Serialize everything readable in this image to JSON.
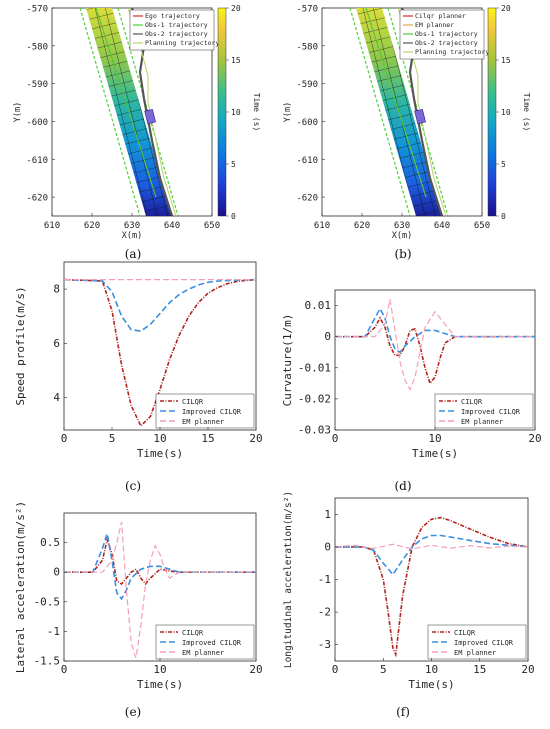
{
  "colors": {
    "ego": "#cc2b2b",
    "ilqr": "#b0231b",
    "improved": "#3a8fe0",
    "em": "#f4a0b4",
    "obs1": "#4ccf3a",
    "obs2": "#555555",
    "planning": "#b5d46a",
    "obstacle": "#7b68d8",
    "axis": "#262626",
    "grid": "#ffffff"
  },
  "colormap": {
    "name": "parula",
    "label": "Time (s)",
    "ticks": [
      0,
      5,
      10,
      15,
      20
    ],
    "range": [
      0,
      20
    ]
  },
  "panels": [
    {
      "id": "a",
      "label": "(a)",
      "ylabel": "Y(m)",
      "xlabel": "X(m)",
      "xticks": [
        610,
        620,
        630,
        640,
        650
      ],
      "yticks": [
        -570,
        -580,
        -590,
        -600,
        -610,
        -620
      ],
      "legend": [
        "Ego trajectory",
        "Obs-1 trajectory",
        "Obs-2 trajectory",
        "Planning trajectory"
      ]
    },
    {
      "id": "b",
      "label": "(b)",
      "ylabel": "Y(m)",
      "xlabel": "X(m)",
      "xticks": [
        610,
        620,
        630,
        640,
        650
      ],
      "yticks": [
        -570,
        -580,
        -590,
        -600,
        -610,
        -620
      ],
      "legend": [
        "Cilqr planner",
        "EM planner",
        "Obs-1 trajectory",
        "Obs-2 trajectory",
        "Planning trajectory"
      ]
    },
    {
      "id": "c",
      "label": "(c)",
      "ylabel": "Speed profile(m/s)",
      "xlabel": "Time(s)",
      "xticks": [
        0,
        5,
        10,
        15,
        20
      ],
      "yticks": [
        4,
        6,
        8
      ],
      "legend": [
        "CILQR",
        "Improved CILQR",
        "EM planner"
      ]
    },
    {
      "id": "d",
      "label": "(d)",
      "ylabel": "Curvature(1/m)",
      "xlabel": "Time(s)",
      "xticks": [
        0,
        10,
        20
      ],
      "yticks": [
        0.01,
        0,
        -0.01,
        -0.02,
        -0.03
      ],
      "legend": [
        "CILQR",
        "Improved CILQR",
        "EM planner"
      ]
    },
    {
      "id": "e",
      "label": "(e)",
      "ylabel": "Lateral acceleration(m/s²)",
      "xlabel": "Time(s)",
      "xticks": [
        0,
        10,
        20
      ],
      "yticks": [
        0.5,
        0,
        -0.5,
        -1,
        -1.5
      ],
      "legend": [
        "CILQR",
        "Improved CILQR",
        "EM planner"
      ]
    },
    {
      "id": "f",
      "label": "(f)",
      "ylabel": "Longitudinal acceleration(m/s²)",
      "xlabel": "Time(s)",
      "xticks": [
        0,
        5,
        10,
        15,
        20
      ],
      "yticks": [
        1,
        0,
        -1,
        -2,
        -3
      ],
      "legend": [
        "CILQR",
        "Improved CILQR",
        "EM planner"
      ]
    }
  ],
  "chart_data": [
    {
      "panel": "a",
      "type": "line",
      "xlabel": "X(m)",
      "ylabel": "Y(m)",
      "xlim": [
        610,
        650
      ],
      "ylim": [
        -625,
        -570
      ],
      "series": [
        {
          "name": "Ego trajectory",
          "x": [
            621,
            624,
            627,
            630,
            633,
            636
          ],
          "y": [
            -570,
            -580,
            -590,
            -600,
            -610,
            -620
          ]
        },
        {
          "name": "Obs-1 trajectory",
          "x": [
            621,
            624,
            627,
            630,
            633,
            636
          ],
          "y": [
            -570,
            -580,
            -590,
            -600,
            -610,
            -620
          ]
        },
        {
          "name": "Obs-2 trajectory",
          "x": [
            630,
            633,
            632,
            633,
            635,
            637,
            640
          ],
          "y": [
            -570,
            -580,
            -587,
            -594,
            -605,
            -615,
            -625
          ]
        },
        {
          "name": "Planning trajectory",
          "x": [
            629,
            632,
            634,
            634,
            636,
            638,
            641
          ],
          "y": [
            -570,
            -580,
            -588,
            -595,
            -605,
            -615,
            -625
          ]
        }
      ]
    },
    {
      "panel": "b",
      "type": "line",
      "xlabel": "X(m)",
      "ylabel": "Y(m)",
      "xlim": [
        610,
        650
      ],
      "ylim": [
        -625,
        -570
      ],
      "series": [
        {
          "name": "Cilqr planner",
          "x": [
            621,
            624,
            627,
            630,
            633,
            636
          ],
          "y": [
            -570,
            -580,
            -590,
            -600,
            -610,
            -620
          ]
        },
        {
          "name": "EM planner",
          "x": [
            621,
            624,
            627,
            630,
            633,
            636
          ],
          "y": [
            -570,
            -580,
            -590,
            -600,
            -610,
            -620
          ]
        },
        {
          "name": "Obs-1 trajectory",
          "x": [
            621,
            624,
            627,
            630,
            633,
            636
          ],
          "y": [
            -570,
            -580,
            -590,
            -600,
            -610,
            -620
          ]
        },
        {
          "name": "Obs-2 trajectory",
          "x": [
            630,
            633,
            632,
            633,
            635,
            637,
            640
          ],
          "y": [
            -570,
            -580,
            -587,
            -594,
            -605,
            -615,
            -625
          ]
        },
        {
          "name": "Planning trajectory",
          "x": [
            629,
            632,
            634,
            634,
            636,
            638,
            641
          ],
          "y": [
            -570,
            -580,
            -588,
            -595,
            -605,
            -615,
            -625
          ]
        }
      ]
    },
    {
      "panel": "c",
      "type": "line",
      "xlabel": "Time(s)",
      "ylabel": "Speed profile(m/s)",
      "xlim": [
        0,
        20
      ],
      "ylim": [
        2.8,
        9
      ],
      "series": [
        {
          "name": "CILQR",
          "x": [
            0,
            4,
            5,
            6,
            7,
            8,
            9,
            10,
            11,
            12,
            13,
            14,
            15,
            16,
            17,
            18,
            19,
            20
          ],
          "y": [
            8.35,
            8.3,
            7.2,
            5.2,
            3.7,
            2.95,
            3.3,
            4.3,
            5.4,
            6.3,
            7.0,
            7.5,
            7.85,
            8.05,
            8.2,
            8.28,
            8.32,
            8.35
          ]
        },
        {
          "name": "Improved CILQR",
          "x": [
            0,
            4,
            5,
            6,
            7,
            8,
            9,
            10,
            11,
            12,
            13,
            14,
            15,
            16,
            18,
            20
          ],
          "y": [
            8.35,
            8.3,
            7.9,
            7.0,
            6.5,
            6.45,
            6.7,
            7.1,
            7.5,
            7.8,
            8.0,
            8.15,
            8.25,
            8.3,
            8.33,
            8.35
          ]
        },
        {
          "name": "EM planner",
          "x": [
            0,
            5,
            10,
            15,
            20
          ],
          "y": [
            8.35,
            8.35,
            8.35,
            8.35,
            8.35
          ]
        }
      ]
    },
    {
      "panel": "d",
      "type": "line",
      "xlabel": "Time(s)",
      "ylabel": "Curvature(1/m)",
      "xlim": [
        0,
        20
      ],
      "ylim": [
        -0.03,
        0.015
      ],
      "series": [
        {
          "name": "CILQR",
          "x": [
            0,
            3,
            4,
            4.5,
            5,
            5.5,
            6,
            6.5,
            7,
            7.5,
            8,
            8.5,
            9,
            9.5,
            10,
            10.5,
            11,
            12,
            14,
            20
          ],
          "y": [
            0,
            0,
            0.003,
            0.006,
            0.003,
            -0.003,
            -0.006,
            -0.006,
            -0.003,
            0.002,
            0.0025,
            -0.003,
            -0.01,
            -0.015,
            -0.013,
            -0.007,
            -0.002,
            0,
            0,
            0
          ]
        },
        {
          "name": "Improved CILQR",
          "x": [
            0,
            3,
            4,
            4.5,
            5,
            5.5,
            6,
            6.5,
            7,
            8,
            9,
            10,
            11,
            12,
            20
          ],
          "y": [
            0,
            0,
            0.006,
            0.009,
            0.006,
            0,
            -0.004,
            -0.005,
            -0.003,
            0,
            0.002,
            0.002,
            0.001,
            0,
            0
          ]
        },
        {
          "name": "EM planner",
          "x": [
            0,
            4,
            5,
            5.5,
            6,
            6.5,
            7,
            7.5,
            8,
            8.5,
            9,
            10,
            11,
            12,
            20
          ],
          "y": [
            0,
            0,
            0.004,
            0.012,
            0.002,
            -0.008,
            -0.014,
            -0.017,
            -0.013,
            -0.005,
            0.003,
            0.008,
            0.004,
            0,
            0
          ]
        }
      ]
    },
    {
      "panel": "e",
      "type": "line",
      "xlabel": "Time(s)",
      "ylabel": "Lateral acceleration(m/s²)",
      "xlim": [
        0,
        20
      ],
      "ylim": [
        -1.5,
        1
      ],
      "series": [
        {
          "name": "CILQR",
          "x": [
            0,
            3,
            4,
            4.5,
            5,
            5.5,
            6,
            6.5,
            7,
            7.5,
            8,
            8.5,
            9,
            10,
            11,
            12,
            20
          ],
          "y": [
            0,
            0,
            0.2,
            0.55,
            0.3,
            -0.15,
            -0.2,
            -0.1,
            0,
            0.05,
            -0.1,
            -0.2,
            -0.1,
            0.05,
            0.02,
            0,
            0
          ]
        },
        {
          "name": "Improved CILQR",
          "x": [
            0,
            3,
            4,
            4.5,
            5,
            5.5,
            6,
            6.5,
            7,
            8,
            9,
            10,
            11,
            12,
            20
          ],
          "y": [
            0,
            0,
            0.4,
            0.65,
            0.2,
            -0.35,
            -0.45,
            -0.3,
            -0.1,
            0.05,
            0.1,
            0.1,
            0.05,
            0,
            0
          ]
        },
        {
          "name": "EM planner",
          "x": [
            0,
            4,
            5,
            5.5,
            6,
            6.5,
            7,
            7.5,
            8,
            8.5,
            9,
            9.5,
            10,
            10.5,
            11,
            12,
            20
          ],
          "y": [
            0,
            0,
            0.2,
            0.5,
            0.85,
            -0.3,
            -1.2,
            -1.45,
            -0.9,
            -0.2,
            0.2,
            0.45,
            0.3,
            0.05,
            -0.1,
            0,
            0
          ]
        }
      ]
    },
    {
      "panel": "f",
      "type": "line",
      "xlabel": "Time(s)",
      "ylabel": "Longitudinal acceleration(m/s²)",
      "xlim": [
        0,
        20
      ],
      "ylim": [
        -3.5,
        1.5
      ],
      "series": [
        {
          "name": "CILQR",
          "x": [
            0,
            3,
            4,
            5,
            5.5,
            6,
            6.3,
            7,
            8,
            9,
            10,
            11,
            12,
            14,
            16,
            18,
            20
          ],
          "y": [
            0,
            0,
            -0.1,
            -1,
            -2,
            -3.1,
            -3.3,
            -1.5,
            0,
            0.6,
            0.85,
            0.9,
            0.8,
            0.55,
            0.3,
            0.1,
            0
          ]
        },
        {
          "name": "Improved CILQR",
          "x": [
            0,
            3,
            4,
            5,
            6,
            7,
            8,
            9,
            10,
            11,
            12,
            14,
            16,
            18,
            20
          ],
          "y": [
            0,
            0,
            -0.1,
            -0.5,
            -0.85,
            -0.4,
            0,
            0.25,
            0.35,
            0.35,
            0.3,
            0.2,
            0.1,
            0.05,
            0
          ]
        },
        {
          "name": "EM planner",
          "x": [
            0,
            2,
            4,
            6,
            8,
            10,
            12,
            14,
            16,
            18,
            20
          ],
          "y": [
            0,
            0.05,
            -0.05,
            0.08,
            -0.06,
            0.05,
            -0.04,
            0.04,
            -0.03,
            0.02,
            0
          ]
        }
      ]
    }
  ]
}
